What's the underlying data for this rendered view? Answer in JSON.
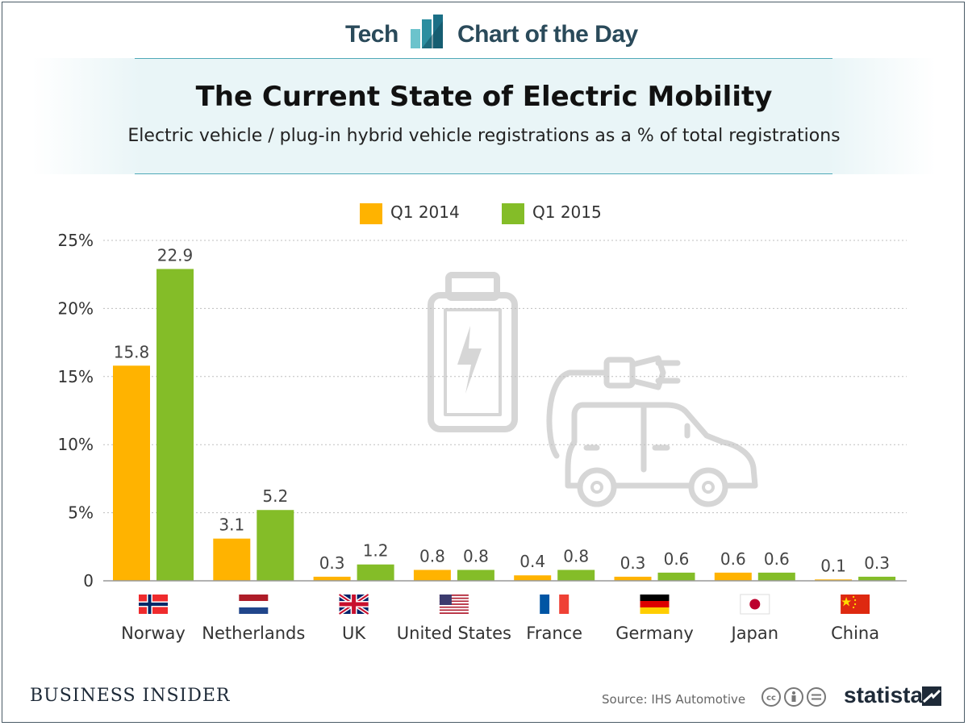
{
  "brand": {
    "left": "Tech",
    "right": "Chart of the Day"
  },
  "title": "The Current State of Electric Mobility",
  "subtitle": "Electric vehicle / plug-in hybrid vehicle registrations as a % of total registrations",
  "legend": [
    "Q1 2014",
    "Q1 2015"
  ],
  "colors": {
    "q1_2014": "#FFB300",
    "q1_2015": "#84BD28",
    "grid": "#bfbfbf",
    "icon": "#d6d6d6"
  },
  "chart_data": {
    "type": "bar",
    "categories": [
      "Norway",
      "Netherlands",
      "UK",
      "United States",
      "France",
      "Germany",
      "Japan",
      "China"
    ],
    "series": [
      {
        "name": "Q1 2014",
        "values": [
          15.8,
          3.1,
          0.3,
          0.8,
          0.4,
          0.3,
          0.6,
          0.1
        ],
        "labels": [
          "15.8",
          "3.1",
          "0.3",
          "0.8",
          "0.4",
          "0.3",
          "0.6",
          "0.1"
        ]
      },
      {
        "name": "Q1 2015",
        "values": [
          22.9,
          5.2,
          1.2,
          0.8,
          0.8,
          0.6,
          0.6,
          0.3
        ],
        "labels": [
          "22.9",
          "5.2",
          "1.2",
          "0.8",
          "0.8",
          "0.6",
          "0.6",
          "0.3"
        ]
      }
    ],
    "yticks": [
      0,
      5,
      10,
      15,
      20,
      25
    ],
    "yticklabels": [
      "0",
      "5%",
      "10%",
      "15%",
      "20%",
      "25%"
    ],
    "ylim": [
      0,
      25
    ],
    "grid": true,
    "legend_position": "top-center"
  },
  "footer": {
    "publisher": "BUSINESS INSIDER",
    "source": "Source: IHS Automotive",
    "brand": "statista"
  }
}
